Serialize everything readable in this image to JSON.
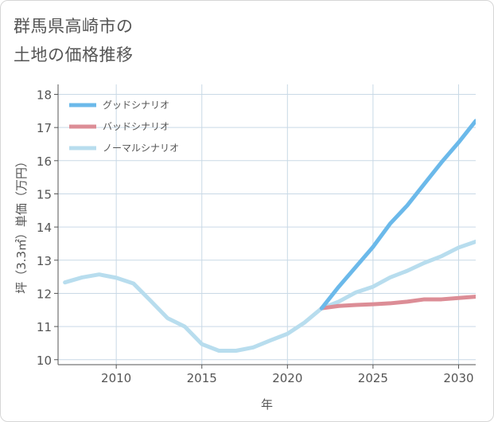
{
  "title": {
    "line1": "群馬県高崎市の",
    "line2": "土地の価格推移"
  },
  "colors": {
    "good": "#6bb9ea",
    "bad": "#dc8d96",
    "normal": "#b8ddee",
    "grid": "#c9d9e6",
    "axis": "#555555"
  },
  "chart_data": {
    "type": "line",
    "xlabel": "年",
    "ylabel": "坪（3.3㎡）単価（万円）",
    "xlim": [
      2006.6,
      2031
    ],
    "ylim": [
      9.85,
      18.3
    ],
    "xticks": [
      2010,
      2015,
      2020,
      2025,
      2030
    ],
    "yticks": [
      10,
      11,
      12,
      13,
      14,
      15,
      16,
      17,
      18
    ],
    "grid": true,
    "legend_position": "top-left",
    "series": [
      {
        "name": "グッドシナリオ",
        "color": "#6bb9ea",
        "points": [
          [
            2022,
            11.55
          ],
          [
            2023,
            12.2
          ],
          [
            2024,
            12.8
          ],
          [
            2025,
            13.4
          ],
          [
            2026,
            14.1
          ],
          [
            2027,
            14.65
          ],
          [
            2028,
            15.3
          ],
          [
            2029,
            15.95
          ],
          [
            2030,
            16.55
          ],
          [
            2031,
            17.2
          ]
        ]
      },
      {
        "name": "バッドシナリオ",
        "color": "#dc8d96",
        "points": [
          [
            2022,
            11.55
          ],
          [
            2023,
            11.62
          ],
          [
            2024,
            11.65
          ],
          [
            2025,
            11.67
          ],
          [
            2026,
            11.7
          ],
          [
            2027,
            11.75
          ],
          [
            2028,
            11.82
          ],
          [
            2029,
            11.82
          ],
          [
            2030,
            11.86
          ],
          [
            2031,
            11.9
          ]
        ]
      },
      {
        "name": "ノーマルシナリオ",
        "color": "#b8ddee",
        "points": [
          [
            2007,
            12.33
          ],
          [
            2008,
            12.48
          ],
          [
            2009,
            12.57
          ],
          [
            2010,
            12.47
          ],
          [
            2011,
            12.3
          ],
          [
            2012,
            11.78
          ],
          [
            2013,
            11.25
          ],
          [
            2014,
            11.0
          ],
          [
            2015,
            10.47
          ],
          [
            2016,
            10.27
          ],
          [
            2017,
            10.27
          ],
          [
            2018,
            10.37
          ],
          [
            2019,
            10.58
          ],
          [
            2020,
            10.78
          ],
          [
            2021,
            11.12
          ],
          [
            2022,
            11.55
          ],
          [
            2023,
            11.75
          ],
          [
            2024,
            12.03
          ],
          [
            2025,
            12.2
          ],
          [
            2026,
            12.48
          ],
          [
            2027,
            12.68
          ],
          [
            2028,
            12.92
          ],
          [
            2029,
            13.12
          ],
          [
            2030,
            13.38
          ],
          [
            2031,
            13.56
          ]
        ]
      }
    ]
  }
}
